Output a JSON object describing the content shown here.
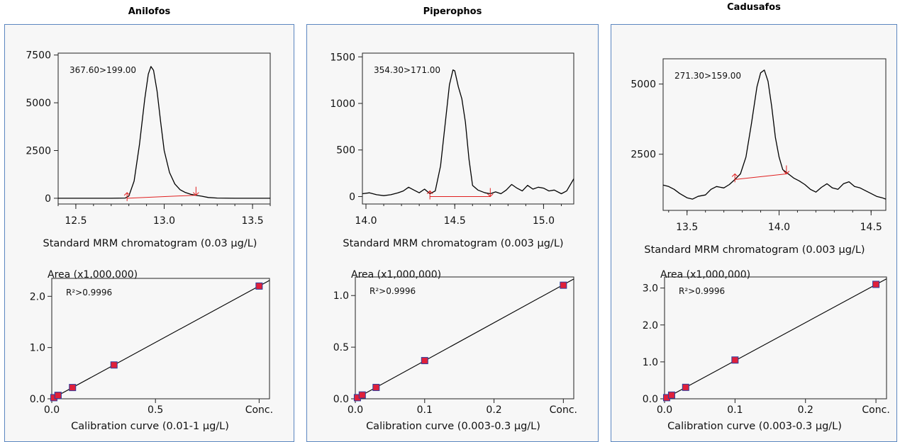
{
  "panels": [
    {
      "title": "Anilofos"
    },
    {
      "title": "Piperophos"
    },
    {
      "title": "Cadusafos"
    }
  ],
  "chart_data": [
    {
      "type": "line",
      "panel": 0,
      "xlabel": "Standard MRM chromatogram (0.03 µg/L)",
      "ylabel": "",
      "annotation": "367.60>199.00",
      "xlim": [
        12.4,
        13.6
      ],
      "ylim": [
        -300,
        7600
      ],
      "xticks": [
        12.5,
        13.0,
        13.5
      ],
      "xtick_labels": [
        "12.5",
        "13.0",
        "13.5"
      ],
      "yticks": [
        0,
        2500,
        5000,
        7500
      ],
      "ytick_labels": [
        "0",
        "2500",
        "5000",
        "7500"
      ],
      "series": [
        {
          "x": [
            12.4,
            12.7,
            12.78,
            12.8,
            12.83,
            12.86,
            12.89,
            12.91,
            12.925,
            12.94,
            12.96,
            12.98,
            13.0,
            13.03,
            13.06,
            13.09,
            13.12,
            13.15,
            13.17,
            13.19,
            13.21,
            13.25,
            13.3,
            13.4,
            13.6
          ],
          "y": [
            0,
            0,
            10,
            120,
            900,
            2800,
            5200,
            6500,
            6900,
            6700,
            5600,
            4000,
            2500,
            1350,
            750,
            450,
            300,
            210,
            170,
            140,
            110,
            40,
            10,
            0,
            0
          ]
        }
      ],
      "baseline": {
        "x": [
          12.79,
          13.18
        ],
        "y": [
          0,
          160
        ]
      }
    },
    {
      "type": "line",
      "panel": 1,
      "xlabel": "Standard MRM chromatogram (0.003 µg/L)",
      "ylabel": "",
      "annotation": "354.30>171.00",
      "xlim": [
        13.98,
        15.17
      ],
      "ylim": [
        -80,
        1540
      ],
      "xticks": [
        14.0,
        14.5,
        15.0
      ],
      "xtick_labels": [
        "14.0",
        "14.5",
        "15.0"
      ],
      "yticks": [
        0,
        500,
        1000,
        1500
      ],
      "yticks_labels_note": "",
      "ytick_labels": [
        "0",
        "500",
        "1000",
        "1500"
      ],
      "series": [
        {
          "x": [
            13.98,
            14.02,
            14.06,
            14.1,
            14.14,
            14.18,
            14.21,
            14.24,
            14.27,
            14.3,
            14.33,
            14.36,
            14.39,
            14.42,
            14.45,
            14.47,
            14.49,
            14.5,
            14.52,
            14.54,
            14.56,
            14.58,
            14.6,
            14.63,
            14.67,
            14.7,
            14.73,
            14.76,
            14.79,
            14.82,
            14.85,
            14.88,
            14.91,
            14.94,
            14.97,
            15.0,
            15.03,
            15.06,
            15.1,
            15.13,
            15.17
          ],
          "y": [
            30,
            40,
            20,
            10,
            20,
            40,
            60,
            100,
            70,
            40,
            80,
            30,
            60,
            330,
            850,
            1200,
            1360,
            1350,
            1180,
            1050,
            800,
            400,
            120,
            70,
            40,
            30,
            50,
            30,
            70,
            130,
            90,
            60,
            120,
            80,
            100,
            90,
            60,
            70,
            30,
            60,
            190
          ]
        }
      ],
      "baseline": {
        "x": [
          14.36,
          14.7
        ],
        "y": [
          0,
          0
        ]
      }
    },
    {
      "type": "line",
      "panel": 2,
      "xlabel": "Standard MRM chromatogram (0.003 µg/L)",
      "ylabel": "",
      "annotation": "271.30>159.00",
      "xlim": [
        13.37,
        14.58
      ],
      "ylim": [
        500,
        5900
      ],
      "xticks": [
        13.5,
        14.0,
        14.5
      ],
      "xtick_labels": [
        "13.5",
        "14.0",
        "14.5"
      ],
      "yticks": [
        2500,
        5000
      ],
      "ytick_labels": [
        "2500",
        "5000"
      ],
      "series": [
        {
          "x": [
            13.37,
            13.4,
            13.43,
            13.46,
            13.5,
            13.53,
            13.56,
            13.6,
            13.63,
            13.66,
            13.7,
            13.73,
            13.76,
            13.79,
            13.82,
            13.85,
            13.88,
            13.9,
            13.92,
            13.94,
            13.96,
            13.98,
            14.0,
            14.02,
            14.05,
            14.08,
            14.11,
            14.14,
            14.17,
            14.2,
            14.23,
            14.26,
            14.29,
            14.32,
            14.35,
            14.38,
            14.41,
            14.44,
            14.47,
            14.5,
            14.53,
            14.56,
            14.58
          ],
          "y": [
            1400,
            1350,
            1250,
            1100,
            950,
            900,
            1000,
            1050,
            1250,
            1350,
            1300,
            1420,
            1600,
            1800,
            2400,
            3600,
            4900,
            5400,
            5500,
            5100,
            4200,
            3100,
            2400,
            1950,
            1800,
            1650,
            1550,
            1420,
            1250,
            1150,
            1320,
            1450,
            1300,
            1250,
            1450,
            1520,
            1350,
            1300,
            1200,
            1100,
            1000,
            950,
            900
          ]
        }
      ],
      "baseline": {
        "x": [
          13.76,
          14.04
        ],
        "y": [
          1600,
          1800
        ]
      }
    },
    {
      "type": "scatter",
      "panel": 0,
      "title": "",
      "ylabel": "Area (x1,000,000)",
      "xlabel": "Calibration curve (0.01-1 µg/L)",
      "annotation": "R²>0.9996",
      "xlim": [
        0,
        1.05
      ],
      "ylim": [
        0,
        2.35
      ],
      "xticks": [
        0,
        0.5,
        1.0
      ],
      "xtick_labels": [
        "0.0",
        "0.5",
        "Conc."
      ],
      "yticks": [
        0,
        1.0,
        2.0
      ],
      "ytick_labels": [
        "0.0",
        "1.0",
        "2.0"
      ],
      "points": {
        "x": [
          0.01,
          0.03,
          0.03,
          0.1,
          0.3,
          1.0
        ],
        "y": [
          0.022,
          0.066,
          0.066,
          0.22,
          0.66,
          2.2
        ]
      },
      "fit": {
        "x": [
          0,
          1.05
        ],
        "y": [
          0,
          2.31
        ]
      }
    },
    {
      "type": "scatter",
      "panel": 1,
      "title": "",
      "ylabel": "Area (x1,000,000)",
      "xlabel": "Calibration curve (0.003-0.3 µg/L)",
      "annotation": "R²>0.9996",
      "xlim": [
        0,
        0.315
      ],
      "ylim": [
        0,
        1.18
      ],
      "xticks": [
        0,
        0.1,
        0.2,
        0.3
      ],
      "xtick_labels": [
        "0.0",
        "0.1",
        "0.2",
        "Conc."
      ],
      "yticks": [
        0,
        0.5,
        1.0
      ],
      "ytick_labels": [
        "0.0",
        "0.5",
        "1.0"
      ],
      "points": {
        "x": [
          0.003,
          0.01,
          0.03,
          0.1,
          0.3
        ],
        "y": [
          0.011,
          0.037,
          0.11,
          0.37,
          1.1
        ]
      },
      "fit": {
        "x": [
          0,
          0.315
        ],
        "y": [
          0,
          1.16
        ]
      }
    },
    {
      "type": "scatter",
      "panel": 2,
      "title": "",
      "ylabel": "Area (x1,000,000)",
      "xlabel": "Calibration curve (0.003-0.3 µg/L)",
      "annotation": "R²>0.9996",
      "xlim": [
        0,
        0.315
      ],
      "ylim": [
        0,
        3.3
      ],
      "xticks": [
        0,
        0.1,
        0.2,
        0.3
      ],
      "xtick_labels": [
        "0.0",
        "0.1",
        "0.2",
        "Conc."
      ],
      "yticks": [
        0,
        1.0,
        2.0,
        3.0
      ],
      "ytick_labels": [
        "0.0",
        "1.0",
        "2.0",
        "3.0"
      ],
      "points": {
        "x": [
          0.003,
          0.01,
          0.03,
          0.1,
          0.3
        ],
        "y": [
          0.031,
          0.1,
          0.31,
          1.05,
          3.1
        ]
      },
      "fit": {
        "x": [
          0,
          0.315
        ],
        "y": [
          0,
          3.25
        ]
      }
    }
  ]
}
